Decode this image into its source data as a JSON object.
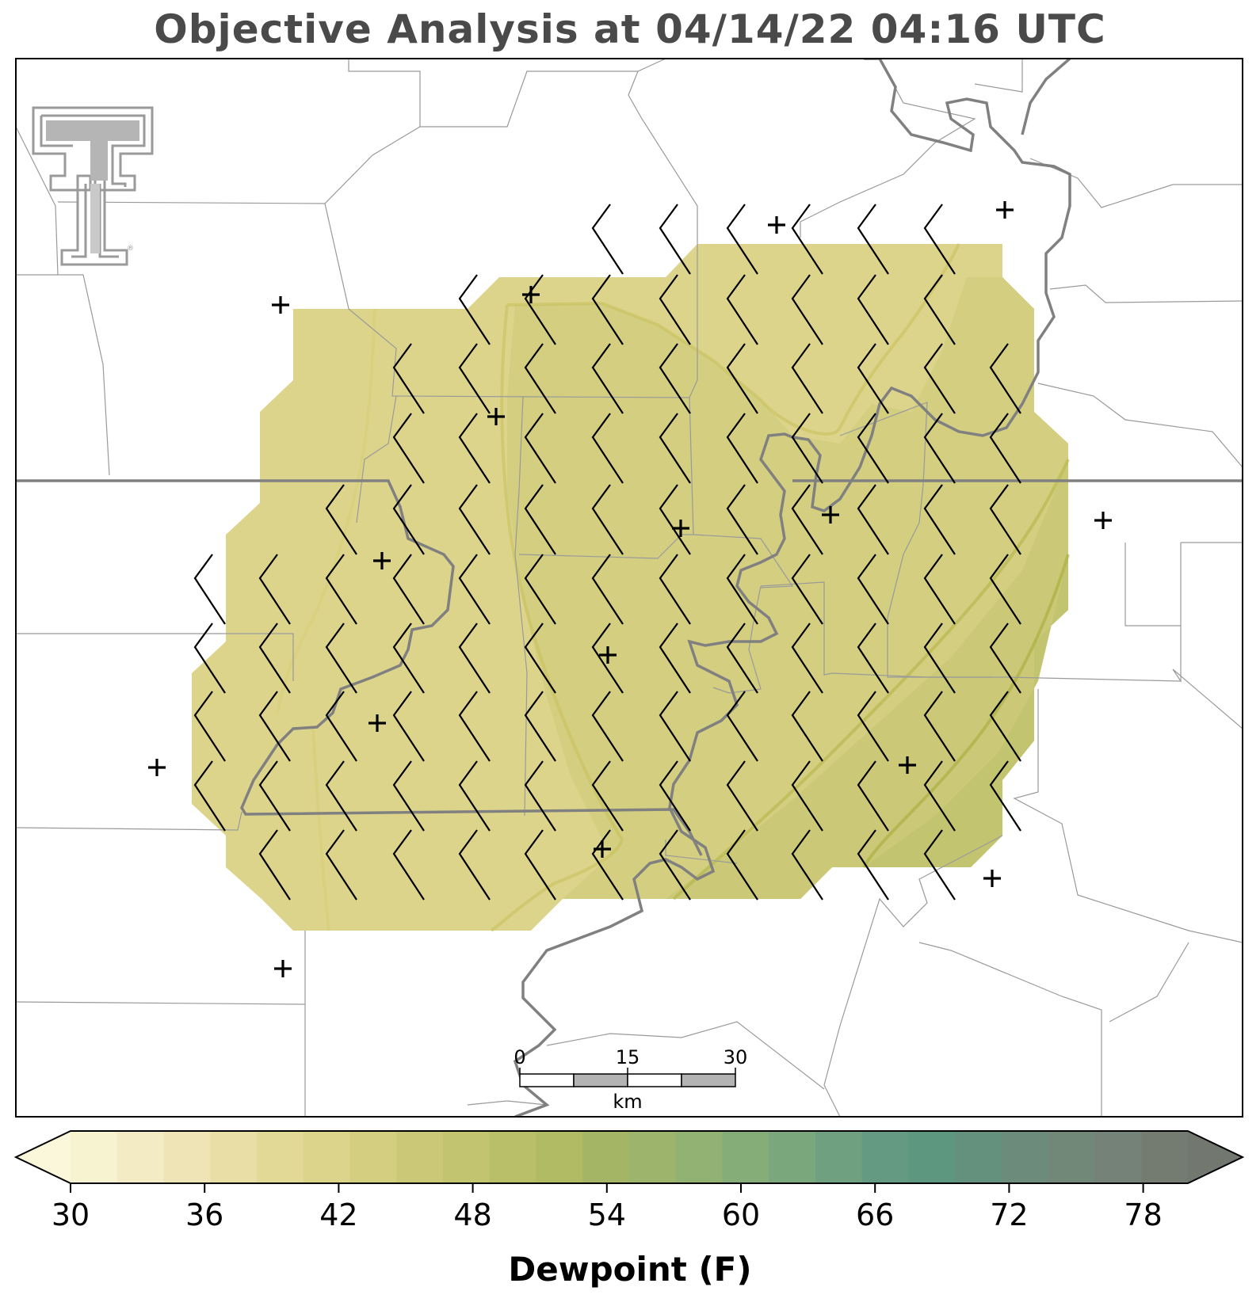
{
  "title": "Objective Analysis at 04/14/22 04:16 UTC",
  "colorbar": {
    "label": "Dewpoint (F)",
    "ticks": [
      "30",
      "36",
      "42",
      "48",
      "54",
      "60",
      "66",
      "72",
      "78"
    ],
    "min": 30,
    "max": 80,
    "colors": [
      "#fbf7da",
      "#f7f2cf",
      "#f3ebc3",
      "#efe4b6",
      "#e9dea6",
      "#e3d997",
      "#ddd48c",
      "#d3ce80",
      "#cbc978",
      "#c3c46f",
      "#b9bf68",
      "#b0bb64",
      "#a5b566",
      "#9cb46b",
      "#91b272",
      "#85ad78",
      "#7aa77c",
      "#6fa080",
      "#659a82",
      "#5e9780",
      "#64917e",
      "#6c8b7b",
      "#718778",
      "#758277",
      "#747c72",
      "#727870"
    ]
  },
  "scale_bar": {
    "labels": [
      "0",
      "15",
      "30"
    ],
    "unit": "km"
  },
  "logo": "texas-tech-double-t-logo",
  "station_symbol": "+",
  "field_colors": {
    "dewpoint_42_44": "#ddd48c",
    "dewpoint_44_46": "#d3ce80",
    "dewpoint_46_48": "#cbc978",
    "dewpoint_48_50": "#c3c46f",
    "dewpoint_50_52": "#b9bf68"
  },
  "wind_barb_color": "#000000",
  "boundary_color": "#808080"
}
